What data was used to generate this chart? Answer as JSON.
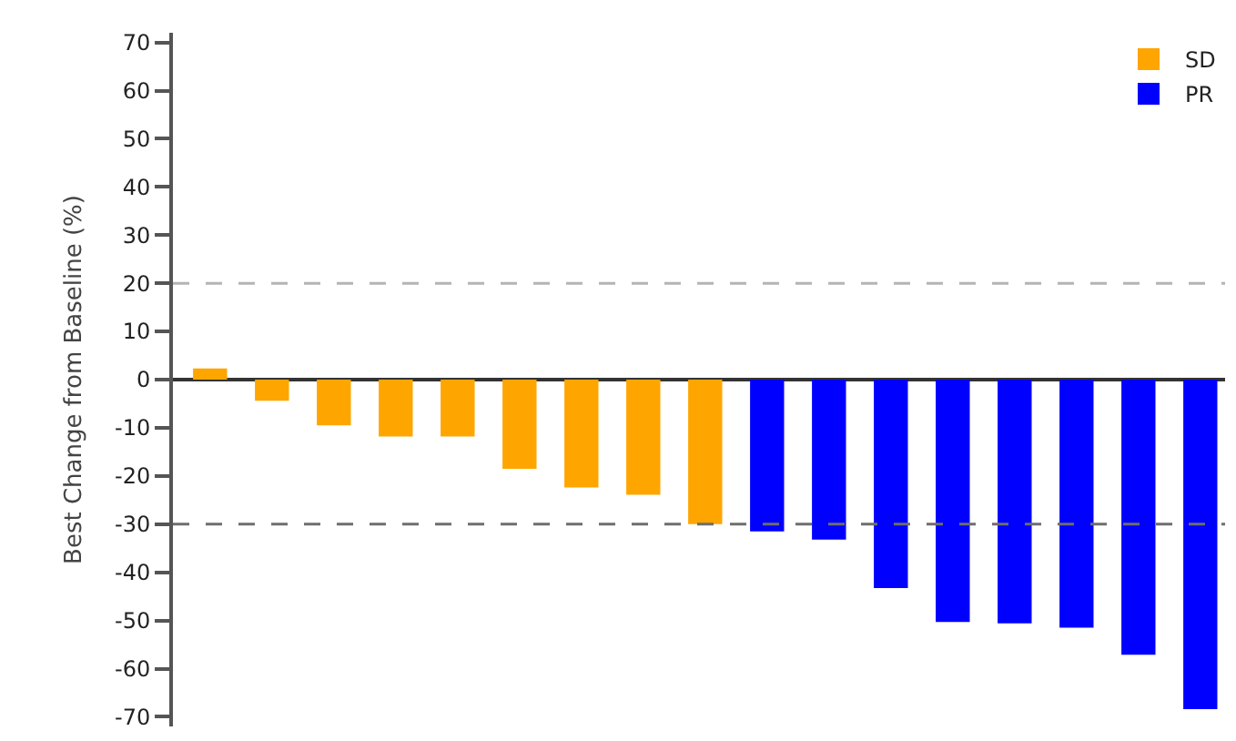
{
  "chart_data": {
    "type": "bar",
    "ylabel": "Best Change from Baseline (%)",
    "categories": [
      null,
      null,
      null,
      null,
      null,
      null,
      null,
      null,
      null,
      null,
      null,
      null,
      null,
      null,
      null,
      null,
      null
    ],
    "series": [
      {
        "name": "SD",
        "color": "#ffa500",
        "values": [
          2.3,
          -4.4,
          -9.5,
          -11.8,
          -11.8,
          -18.5,
          -22.4,
          -23.9,
          -30,
          null,
          null,
          null,
          null,
          null,
          null,
          null,
          null
        ]
      },
      {
        "name": "PR",
        "color": "#0000ff",
        "values": [
          null,
          null,
          null,
          null,
          null,
          null,
          null,
          null,
          null,
          -31.5,
          -33.2,
          -43.3,
          -50.3,
          -50.6,
          -51.5,
          -57.1,
          -68.4
        ]
      }
    ],
    "ylim": [
      -72,
      72
    ],
    "yticks": [
      -70,
      -60,
      -50,
      -40,
      -30,
      -20,
      -10,
      0,
      10,
      20,
      30,
      40,
      50,
      60,
      70
    ],
    "ref_lines": [
      {
        "axis": "y",
        "value": 20,
        "color": "#b4b4b4",
        "line_style": "dashed"
      },
      {
        "axis": "y",
        "value": -30,
        "color": "#6e6e6e",
        "line_style": "dashed"
      }
    ],
    "tick_labels": "y",
    "legend": "top right"
  }
}
